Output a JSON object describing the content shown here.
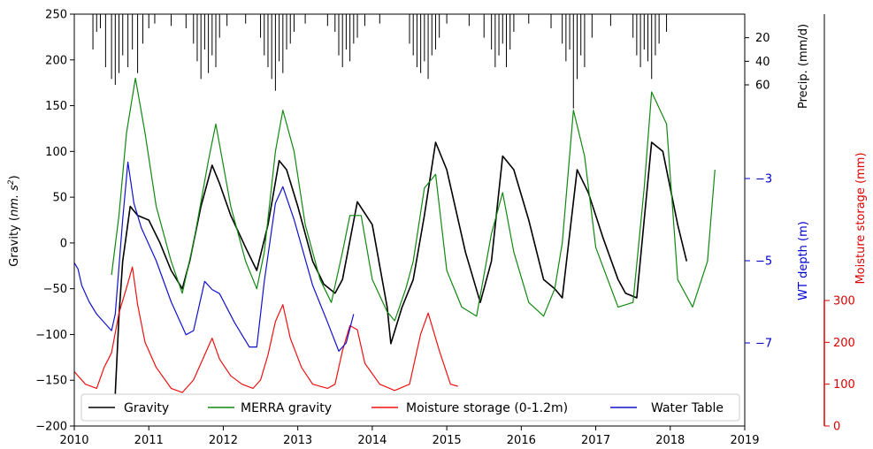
{
  "chart_data": {
    "type": "line",
    "xlim": [
      2010,
      2019
    ],
    "x_ticks": [
      2010,
      2011,
      2012,
      2013,
      2014,
      2015,
      2016,
      2017,
      2018,
      2019
    ],
    "y_left": {
      "label_main": "Gravity (",
      "label_unit": "nm. s",
      "label_exp": "2",
      "label_close": ")",
      "ylim": [
        -200,
        250
      ],
      "ticks": [
        -200,
        -150,
        -100,
        -50,
        0,
        50,
        100,
        150,
        200,
        250
      ]
    },
    "y_precip": {
      "label": "Precip. (mm/d)",
      "ticks": [
        20,
        40,
        60
      ],
      "color": "#000000"
    },
    "y_wt": {
      "label": "WT depth (m)",
      "ticks": [
        -3,
        -5,
        -7
      ],
      "color": "#0000cc"
    },
    "y_moist": {
      "label": "Moisture storage (mm)",
      "ticks": [
        0,
        100,
        200,
        300
      ],
      "color": "#dd0000"
    },
    "legend": {
      "position": "bottom",
      "entries": [
        {
          "label": "Gravity",
          "color": "#000000"
        },
        {
          "label": "MERRA gravity",
          "color": "#118811"
        },
        {
          "label": "Moisture storage (0-1.2m)",
          "color": "#ee1111"
        },
        {
          "label": "Water Table",
          "color": "#1111cc"
        }
      ]
    },
    "series": [
      {
        "name": "Gravity",
        "color": "#000000",
        "axis": "gravity",
        "x": [
          2010.55,
          2010.6,
          2010.65,
          2010.7,
          2010.75,
          2010.85,
          2011.0,
          2011.15,
          2011.3,
          2011.45,
          2011.55,
          2011.7,
          2011.85,
          2011.95,
          2012.1,
          2012.3,
          2012.45,
          2012.6,
          2012.75,
          2012.85,
          2013.0,
          2013.2,
          2013.35,
          2013.5,
          2013.6,
          2013.8,
          2014.0,
          2014.2,
          2014.25,
          2014.4,
          2014.55,
          2014.7,
          2014.85,
          2015.0,
          2015.25,
          2015.45,
          2015.6,
          2015.75,
          2015.9,
          2016.1,
          2016.3,
          2016.45,
          2016.55,
          2016.75,
          2016.9,
          2017.1,
          2017.3,
          2017.4,
          2017.55,
          2017.75,
          2017.9,
          2018.0,
          2018.1,
          2018.22
        ],
        "y": [
          -165,
          -80,
          -20,
          10,
          40,
          30,
          25,
          0,
          -30,
          -50,
          -20,
          40,
          85,
          65,
          30,
          -5,
          -30,
          20,
          90,
          80,
          40,
          -20,
          -45,
          -55,
          -40,
          45,
          20,
          -70,
          -110,
          -70,
          -40,
          30,
          110,
          80,
          -10,
          -65,
          -20,
          95,
          80,
          25,
          -40,
          -50,
          -60,
          80,
          55,
          5,
          -40,
          -55,
          -60,
          110,
          100,
          60,
          20,
          -20
        ]
      },
      {
        "name": "MERRA gravity",
        "color": "#118811",
        "axis": "gravity",
        "x": [
          2010.5,
          2010.6,
          2010.7,
          2010.82,
          2010.95,
          2011.1,
          2011.3,
          2011.45,
          2011.6,
          2011.8,
          2011.9,
          2012.1,
          2012.3,
          2012.45,
          2012.55,
          2012.7,
          2012.8,
          2012.95,
          2013.1,
          2013.3,
          2013.45,
          2013.6,
          2013.7,
          2013.85,
          2014.0,
          2014.2,
          2014.3,
          2014.45,
          2014.55,
          2014.7,
          2014.85,
          2015.0,
          2015.2,
          2015.4,
          2015.6,
          2015.75,
          2015.9,
          2016.1,
          2016.3,
          2016.45,
          2016.55,
          2016.7,
          2016.85,
          2017.0,
          2017.3,
          2017.5,
          2017.65,
          2017.75,
          2017.95,
          2018.1,
          2018.3,
          2018.5,
          2018.6
        ],
        "y": [
          -35,
          30,
          120,
          180,
          120,
          40,
          -20,
          -55,
          0,
          90,
          130,
          40,
          -20,
          -50,
          -10,
          100,
          145,
          100,
          20,
          -40,
          -65,
          -10,
          30,
          30,
          -40,
          -75,
          -85,
          -50,
          -20,
          60,
          75,
          -30,
          -70,
          -80,
          10,
          55,
          -10,
          -65,
          -80,
          -50,
          0,
          145,
          95,
          -5,
          -70,
          -65,
          60,
          165,
          130,
          -40,
          -70,
          -20,
          80
        ]
      },
      {
        "name": "Moisture storage (0-1.2m)",
        "color": "#ee1111",
        "axis": "moisture",
        "x": [
          2010.0,
          2010.15,
          2010.3,
          2010.4,
          2010.5,
          2010.6,
          2010.7,
          2010.78,
          2010.85,
          2010.95,
          2011.1,
          2011.3,
          2011.45,
          2011.6,
          2011.75,
          2011.85,
          2011.95,
          2012.1,
          2012.25,
          2012.4,
          2012.5,
          2012.6,
          2012.7,
          2012.8,
          2012.9,
          2013.05,
          2013.2,
          2013.4,
          2013.5,
          2013.6,
          2013.7,
          2013.8,
          2013.9,
          2014.1,
          2014.3,
          2014.5,
          2014.65,
          2014.75,
          2014.9,
          2015.05,
          2015.15
        ],
        "y": [
          130,
          100,
          90,
          140,
          175,
          270,
          330,
          380,
          290,
          200,
          140,
          90,
          80,
          110,
          170,
          210,
          160,
          120,
          100,
          90,
          110,
          170,
          250,
          290,
          210,
          140,
          100,
          90,
          100,
          180,
          240,
          230,
          150,
          100,
          85,
          100,
          220,
          270,
          180,
          100,
          95
        ]
      },
      {
        "name": "Water Table",
        "color": "#1111cc",
        "axis": "wt",
        "x": [
          2010.0,
          2010.05,
          2010.1,
          2010.2,
          2010.3,
          2010.5,
          2010.55,
          2010.65,
          2010.72,
          2010.8,
          2010.9,
          2011.1,
          2011.3,
          2011.5,
          2011.6,
          2011.75,
          2011.85,
          2011.95,
          2012.15,
          2012.35,
          2012.45,
          2012.55,
          2012.7,
          2012.8,
          2012.95,
          2013.2,
          2013.4,
          2013.55,
          2013.65,
          2013.75
        ],
        "y": [
          -5.05,
          -5.2,
          -5.6,
          -6.0,
          -6.3,
          -6.7,
          -6.3,
          -4.0,
          -2.6,
          -3.6,
          -4.2,
          -5.0,
          -6.0,
          -6.8,
          -6.7,
          -5.5,
          -5.7,
          -5.8,
          -6.5,
          -7.1,
          -7.1,
          -5.5,
          -3.6,
          -3.2,
          -4.0,
          -5.6,
          -6.5,
          -7.2,
          -7.0,
          -6.3
        ]
      }
    ],
    "precip_events": {
      "color": "#000000",
      "x": [
        2010.25,
        2010.3,
        2010.35,
        2010.42,
        2010.5,
        2010.55,
        2010.6,
        2010.65,
        2010.72,
        2010.78,
        2010.85,
        2010.92,
        2011.0,
        2011.08,
        2011.3,
        2011.5,
        2011.6,
        2011.65,
        2011.7,
        2011.75,
        2011.8,
        2011.85,
        2011.9,
        2011.95,
        2012.05,
        2012.3,
        2012.5,
        2012.55,
        2012.6,
        2012.65,
        2012.7,
        2012.75,
        2012.8,
        2012.85,
        2012.9,
        2012.95,
        2013.1,
        2013.4,
        2013.5,
        2013.55,
        2013.6,
        2013.65,
        2013.7,
        2013.75,
        2013.8,
        2013.9,
        2014.1,
        2014.5,
        2014.55,
        2014.6,
        2014.65,
        2014.7,
        2014.75,
        2014.8,
        2014.85,
        2014.9,
        2015.0,
        2015.3,
        2015.5,
        2015.6,
        2015.65,
        2015.7,
        2015.75,
        2015.8,
        2015.85,
        2015.9,
        2016.1,
        2016.4,
        2016.55,
        2016.6,
        2016.65,
        2016.7,
        2016.75,
        2016.8,
        2016.85,
        2016.95,
        2017.2,
        2017.5,
        2017.55,
        2017.6,
        2017.65,
        2017.7,
        2017.75,
        2017.8,
        2017.85,
        2017.95
      ],
      "v": [
        30,
        15,
        12,
        45,
        55,
        60,
        50,
        35,
        45,
        30,
        50,
        25,
        12,
        8,
        10,
        12,
        25,
        40,
        55,
        30,
        50,
        35,
        45,
        20,
        10,
        8,
        20,
        35,
        45,
        55,
        65,
        40,
        50,
        30,
        25,
        15,
        8,
        10,
        15,
        35,
        45,
        30,
        40,
        25,
        20,
        10,
        8,
        25,
        35,
        45,
        50,
        40,
        55,
        35,
        30,
        20,
        8,
        10,
        20,
        30,
        45,
        35,
        25,
        45,
        30,
        15,
        8,
        12,
        25,
        40,
        30,
        80,
        55,
        35,
        45,
        20,
        10,
        20,
        35,
        45,
        30,
        40,
        55,
        35,
        25,
        15
      ]
    }
  }
}
